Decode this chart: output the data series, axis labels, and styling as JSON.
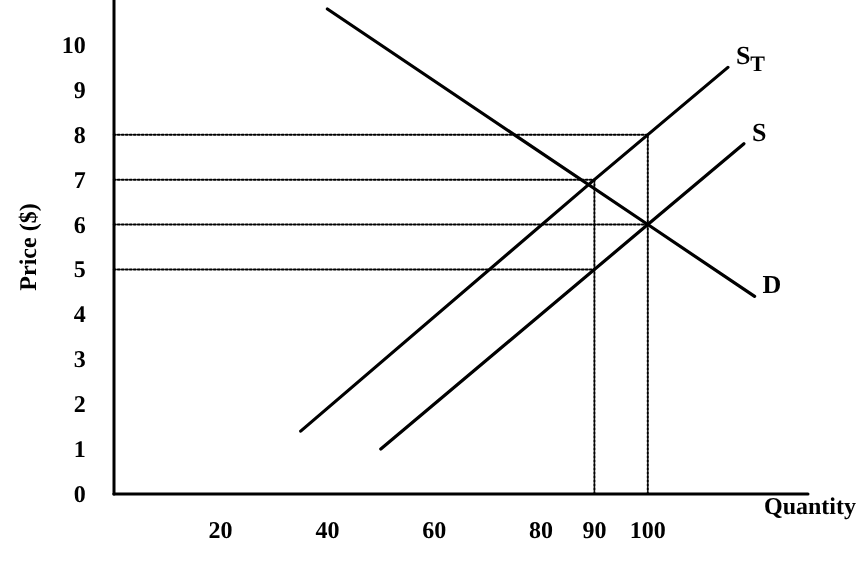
{
  "chart_data": {
    "type": "line",
    "xlabel": "Quantity",
    "ylabel": "Price ($)",
    "xlim": [
      0,
      130
    ],
    "ylim": [
      0,
      11
    ],
    "xticks": [
      20,
      40,
      60,
      80,
      90,
      100
    ],
    "yticks": [
      0,
      1,
      2,
      3,
      4,
      5,
      6,
      7,
      8,
      9,
      10
    ],
    "marker": "none",
    "line_style": "solid",
    "series": [
      {
        "name": "D",
        "color": "#000000",
        "x": [
          40,
          100,
          120
        ],
        "values": [
          10.8,
          6,
          4.4
        ]
      },
      {
        "name": "S",
        "color": "#000000",
        "x": [
          50,
          100,
          118
        ],
        "values": [
          1,
          6,
          7.8
        ]
      },
      {
        "name": "S$_{T}$",
        "color": "#000000",
        "x": [
          35,
          90,
          115
        ],
        "values": [
          1.4,
          7,
          9.5
        ]
      },
      {
        "color": "#000000",
        "line_style": "dotted",
        "x": [
          0,
          100
        ],
        "values": [
          8,
          8
        ]
      },
      {
        "color": "#000000",
        "line_style": "dotted",
        "x": [
          0,
          90
        ],
        "values": [
          7,
          7
        ]
      },
      {
        "color": "#000000",
        "line_style": "dotted",
        "x": [
          0,
          100
        ],
        "values": [
          6,
          6
        ]
      },
      {
        "color": "#000000",
        "line_style": "dotted",
        "x": [
          0,
          90
        ],
        "values": [
          5,
          5
        ]
      },
      {
        "color": "#000000",
        "line_style": "dotted",
        "x": [
          90,
          90
        ],
        "values": [
          0,
          7
        ]
      },
      {
        "color": "#000000",
        "line_style": "dotted",
        "x": [
          100,
          100
        ],
        "values": [
          0,
          8
        ]
      }
    ]
  }
}
